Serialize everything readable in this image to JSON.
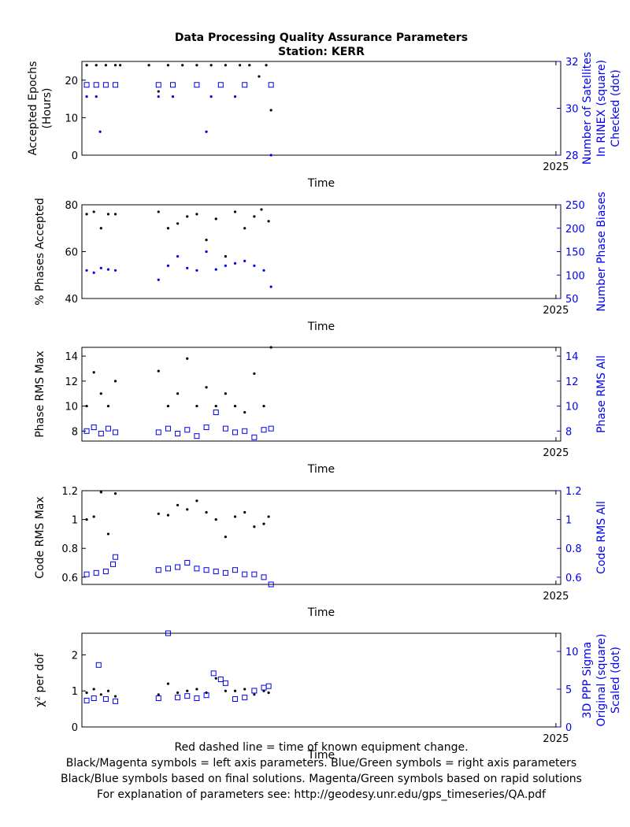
{
  "title": "Data Processing Quality Assurance Parameters",
  "subtitle": "Station: KERR",
  "footer": [
    "Red dashed line = time of known equipment change.",
    "Black/Magenta symbols = left axis parameters. Blue/Green symbols = right axis parameters",
    "Black/Blue symbols based on final solutions.  Magenta/Green symbols based on rapid solutions",
    "For explanation of parameters see: http://geodesy.unr.edu/gps_timeseries/QA.pdf"
  ],
  "colors": {
    "left": "#000000",
    "right": "#0000ee"
  },
  "chart_data": [
    {
      "type": "scatter",
      "xlabel": "Time",
      "x_tick_labels": [
        {
          "value": 2025.0,
          "label": "2025"
        }
      ],
      "xlim": [
        2024.01,
        2025.01
      ],
      "ylabel": [
        "Accepted Epochs",
        "(Hours)"
      ],
      "ylim": [
        0,
        25
      ],
      "yticks": [
        0,
        10,
        20
      ],
      "ylabel_right": [
        "Number of Satellites",
        "In RINEX (square)",
        "Checked (dot)"
      ],
      "ylim_right": [
        28,
        32
      ],
      "yticks_right": [
        28,
        30,
        32
      ],
      "series": [
        {
          "axis": "left",
          "marker": "dot",
          "points": [
            [
              2024.02,
              24
            ],
            [
              2024.04,
              24
            ],
            [
              2024.06,
              24
            ],
            [
              2024.08,
              24
            ],
            [
              2024.09,
              24
            ],
            [
              2024.15,
              24
            ],
            [
              2024.17,
              17
            ],
            [
              2024.19,
              24
            ],
            [
              2024.22,
              24
            ],
            [
              2024.25,
              24
            ],
            [
              2024.28,
              24
            ],
            [
              2024.31,
              24
            ],
            [
              2024.34,
              24
            ],
            [
              2024.36,
              24
            ],
            [
              2024.38,
              21
            ],
            [
              2024.395,
              24
            ],
            [
              2024.405,
              12
            ]
          ]
        },
        {
          "axis": "right",
          "marker": "dot",
          "points": [
            [
              2024.02,
              30.5
            ],
            [
              2024.04,
              30.5
            ],
            [
              2024.048,
              29
            ],
            [
              2024.17,
              30.5
            ],
            [
              2024.2,
              30.5
            ],
            [
              2024.27,
              29
            ],
            [
              2024.28,
              30.5
            ],
            [
              2024.33,
              30.5
            ],
            [
              2024.405,
              28
            ]
          ]
        },
        {
          "axis": "right",
          "marker": "square",
          "points": [
            [
              2024.02,
              31
            ],
            [
              2024.04,
              31
            ],
            [
              2024.06,
              31
            ],
            [
              2024.08,
              31
            ],
            [
              2024.17,
              31
            ],
            [
              2024.2,
              31
            ],
            [
              2024.25,
              31
            ],
            [
              2024.3,
              31
            ],
            [
              2024.35,
              31
            ],
            [
              2024.405,
              31
            ]
          ]
        }
      ]
    },
    {
      "type": "scatter",
      "xlabel": "Time",
      "x_tick_labels": [
        {
          "value": 2025.0,
          "label": "2025"
        }
      ],
      "xlim": [
        2024.01,
        2025.01
      ],
      "ylabel": [
        "% Phases Accepted"
      ],
      "ylim": [
        40,
        80
      ],
      "yticks": [
        40,
        60,
        80
      ],
      "ylabel_right": [
        "Number Phase Biases"
      ],
      "ylim_right": [
        50,
        250
      ],
      "yticks_right": [
        50,
        100,
        150,
        200,
        250
      ],
      "series": [
        {
          "axis": "left",
          "marker": "dot",
          "points": [
            [
              2024.02,
              76
            ],
            [
              2024.035,
              77
            ],
            [
              2024.05,
              70
            ],
            [
              2024.065,
              76
            ],
            [
              2024.08,
              76
            ],
            [
              2024.17,
              77
            ],
            [
              2024.19,
              70
            ],
            [
              2024.21,
              72
            ],
            [
              2024.23,
              75
            ],
            [
              2024.25,
              76
            ],
            [
              2024.27,
              65
            ],
            [
              2024.29,
              74
            ],
            [
              2024.31,
              58
            ],
            [
              2024.33,
              77
            ],
            [
              2024.35,
              70
            ],
            [
              2024.37,
              75
            ],
            [
              2024.385,
              78
            ],
            [
              2024.4,
              73
            ]
          ]
        },
        {
          "axis": "right",
          "marker": "dot",
          "points": [
            [
              2024.02,
              110
            ],
            [
              2024.035,
              105
            ],
            [
              2024.05,
              115
            ],
            [
              2024.065,
              112
            ],
            [
              2024.08,
              110
            ],
            [
              2024.17,
              90
            ],
            [
              2024.19,
              120
            ],
            [
              2024.21,
              140
            ],
            [
              2024.23,
              115
            ],
            [
              2024.25,
              110
            ],
            [
              2024.27,
              150
            ],
            [
              2024.29,
              112
            ],
            [
              2024.31,
              120
            ],
            [
              2024.33,
              125
            ],
            [
              2024.35,
              130
            ],
            [
              2024.37,
              120
            ],
            [
              2024.39,
              110
            ],
            [
              2024.405,
              75
            ]
          ]
        }
      ]
    },
    {
      "type": "scatter",
      "xlabel": "Time",
      "x_tick_labels": [
        {
          "value": 2025.0,
          "label": "2025"
        }
      ],
      "xlim": [
        2024.01,
        2025.01
      ],
      "ylabel": [
        "Phase RMS Max"
      ],
      "ylim": [
        7.2,
        14.7
      ],
      "yticks": [
        8,
        10,
        12,
        14
      ],
      "ylabel_right": [
        "Phase RMS All"
      ],
      "ylim_right": [
        7.2,
        14.7
      ],
      "yticks_right": [
        8,
        10,
        12,
        14
      ],
      "series": [
        {
          "axis": "left",
          "marker": "dot",
          "points": [
            [
              2024.02,
              10
            ],
            [
              2024.035,
              12.7
            ],
            [
              2024.05,
              11
            ],
            [
              2024.065,
              10
            ],
            [
              2024.08,
              12
            ],
            [
              2024.17,
              12.8
            ],
            [
              2024.19,
              10
            ],
            [
              2024.21,
              11
            ],
            [
              2024.23,
              13.8
            ],
            [
              2024.25,
              10
            ],
            [
              2024.27,
              11.5
            ],
            [
              2024.29,
              10
            ],
            [
              2024.31,
              11
            ],
            [
              2024.33,
              10
            ],
            [
              2024.35,
              9.5
            ],
            [
              2024.37,
              12.6
            ],
            [
              2024.39,
              10
            ],
            [
              2024.405,
              14.7
            ]
          ]
        },
        {
          "axis": "right",
          "marker": "square",
          "points": [
            [
              2024.02,
              8
            ],
            [
              2024.035,
              8.3
            ],
            [
              2024.05,
              7.8
            ],
            [
              2024.065,
              8.2
            ],
            [
              2024.08,
              7.9
            ],
            [
              2024.17,
              7.9
            ],
            [
              2024.19,
              8.2
            ],
            [
              2024.21,
              7.8
            ],
            [
              2024.23,
              8.1
            ],
            [
              2024.25,
              7.6
            ],
            [
              2024.27,
              8.3
            ],
            [
              2024.29,
              9.5
            ],
            [
              2024.31,
              8.2
            ],
            [
              2024.33,
              7.9
            ],
            [
              2024.35,
              8
            ],
            [
              2024.37,
              7.5
            ],
            [
              2024.39,
              8.1
            ],
            [
              2024.405,
              8.2
            ]
          ]
        }
      ]
    },
    {
      "type": "scatter",
      "xlabel": "Time",
      "x_tick_labels": [
        {
          "value": 2025.0,
          "label": "2025"
        }
      ],
      "xlim": [
        2024.01,
        2025.01
      ],
      "ylabel": [
        "Code RMS Max"
      ],
      "ylim": [
        0.55,
        1.2
      ],
      "yticks": [
        0.6,
        0.8,
        1.0,
        1.2
      ],
      "ytick_labels": [
        "0.6",
        "0.8",
        "1",
        "1.2"
      ],
      "ylabel_right": [
        "Code RMS All"
      ],
      "ylim_right": [
        0.55,
        1.2
      ],
      "yticks_right": [
        0.6,
        0.8,
        1.0,
        1.2
      ],
      "ytick_labels_right": [
        "0.6",
        "0.8",
        "1",
        "1.2"
      ],
      "series": [
        {
          "axis": "left",
          "marker": "dot",
          "points": [
            [
              2024.02,
              1.0
            ],
            [
              2024.035,
              1.02
            ],
            [
              2024.05,
              1.19
            ],
            [
              2024.065,
              0.9
            ],
            [
              2024.08,
              1.18
            ],
            [
              2024.17,
              1.04
            ],
            [
              2024.19,
              1.03
            ],
            [
              2024.21,
              1.1
            ],
            [
              2024.23,
              1.07
            ],
            [
              2024.25,
              1.13
            ],
            [
              2024.27,
              1.05
            ],
            [
              2024.29,
              1.0
            ],
            [
              2024.31,
              0.88
            ],
            [
              2024.33,
              1.02
            ],
            [
              2024.35,
              1.05
            ],
            [
              2024.37,
              0.95
            ],
            [
              2024.39,
              0.97
            ],
            [
              2024.4,
              1.02
            ]
          ]
        },
        {
          "axis": "right",
          "marker": "square",
          "points": [
            [
              2024.02,
              0.62
            ],
            [
              2024.04,
              0.63
            ],
            [
              2024.06,
              0.64
            ],
            [
              2024.075,
              0.69
            ],
            [
              2024.08,
              0.74
            ],
            [
              2024.17,
              0.65
            ],
            [
              2024.19,
              0.66
            ],
            [
              2024.21,
              0.67
            ],
            [
              2024.23,
              0.7
            ],
            [
              2024.25,
              0.66
            ],
            [
              2024.27,
              0.65
            ],
            [
              2024.29,
              0.64
            ],
            [
              2024.31,
              0.63
            ],
            [
              2024.33,
              0.65
            ],
            [
              2024.35,
              0.62
            ],
            [
              2024.37,
              0.62
            ],
            [
              2024.39,
              0.6
            ],
            [
              2024.405,
              0.55
            ]
          ]
        }
      ]
    },
    {
      "type": "scatter",
      "xlabel": "Time",
      "x_tick_labels": [
        {
          "value": 2025.0,
          "label": "2025"
        }
      ],
      "xlim": [
        2024.01,
        2025.01
      ],
      "ylabel": [
        "χ² per dof"
      ],
      "ylim": [
        0,
        2.6
      ],
      "yticks": [
        0,
        1,
        2
      ],
      "ylabel_right": [
        "3D PPP Sigma",
        "Original (square)",
        "Scaled (dot)"
      ],
      "ylim_right": [
        0,
        12.4
      ],
      "yticks_right": [
        0,
        5,
        10
      ],
      "series": [
        {
          "axis": "left",
          "marker": "dot",
          "points": [
            [
              2024.02,
              0.95
            ],
            [
              2024.035,
              1.05
            ],
            [
              2024.05,
              0.9
            ],
            [
              2024.065,
              1.0
            ],
            [
              2024.08,
              0.85
            ],
            [
              2024.17,
              0.9
            ],
            [
              2024.19,
              1.2
            ],
            [
              2024.21,
              0.95
            ],
            [
              2024.23,
              1.0
            ],
            [
              2024.25,
              1.05
            ],
            [
              2024.27,
              0.95
            ],
            [
              2024.29,
              1.35
            ],
            [
              2024.31,
              1.0
            ],
            [
              2024.33,
              1.0
            ],
            [
              2024.35,
              1.05
            ],
            [
              2024.37,
              0.9
            ],
            [
              2024.39,
              1.0
            ],
            [
              2024.4,
              0.95
            ]
          ]
        },
        {
          "axis": "right",
          "marker": "square",
          "points": [
            [
              2024.02,
              3.5
            ],
            [
              2024.035,
              3.8
            ],
            [
              2024.045,
              8.2
            ],
            [
              2024.06,
              3.7
            ],
            [
              2024.08,
              3.4
            ],
            [
              2024.17,
              3.8
            ],
            [
              2024.19,
              12.4
            ],
            [
              2024.21,
              3.9
            ],
            [
              2024.23,
              4.1
            ],
            [
              2024.25,
              3.8
            ],
            [
              2024.27,
              4.2
            ],
            [
              2024.285,
              7.1
            ],
            [
              2024.3,
              6.3
            ],
            [
              2024.31,
              5.8
            ],
            [
              2024.33,
              3.7
            ],
            [
              2024.35,
              3.9
            ],
            [
              2024.37,
              4.8
            ],
            [
              2024.39,
              5.2
            ],
            [
              2024.4,
              5.4
            ]
          ]
        }
      ]
    }
  ]
}
